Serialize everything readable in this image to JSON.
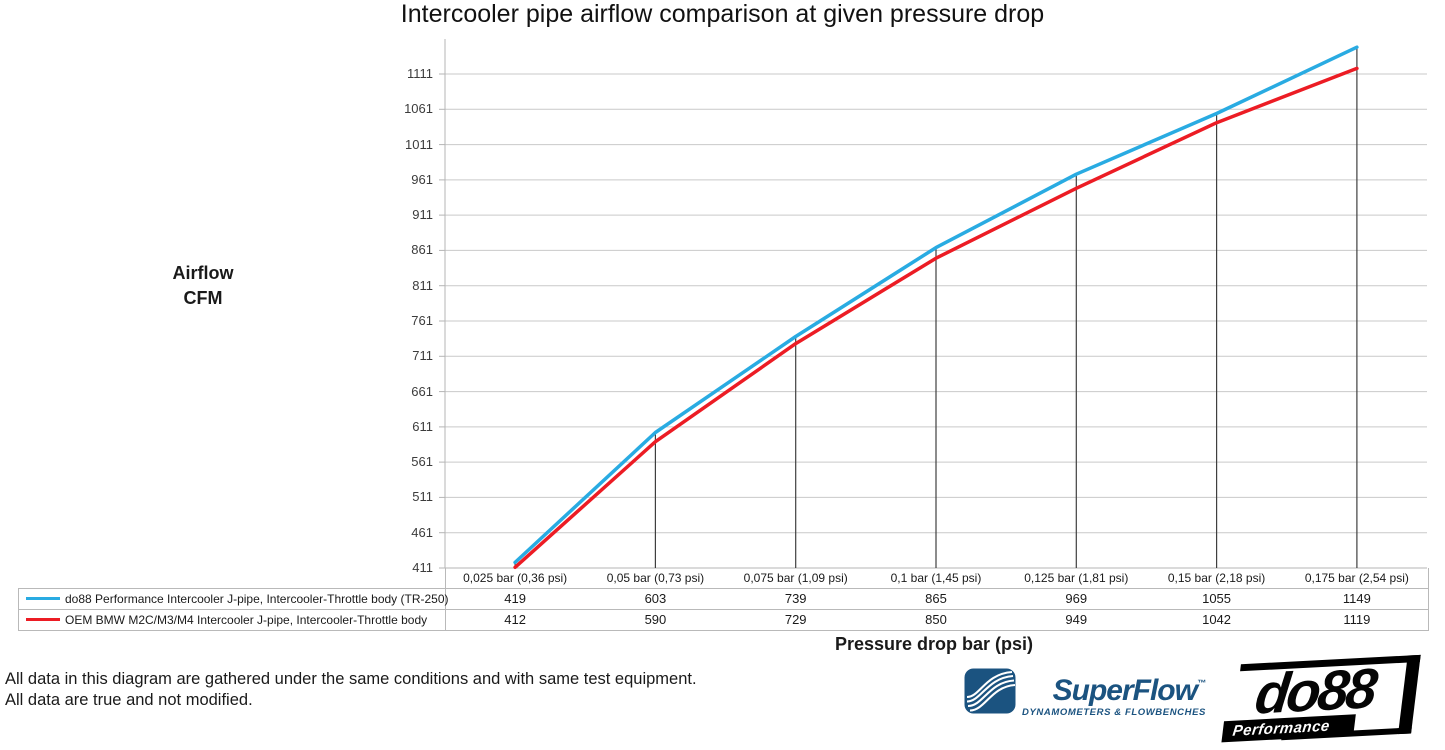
{
  "title": "Intercooler pipe airflow comparison at given pressure drop",
  "chart_data": {
    "type": "line",
    "title": "Intercooler pipe airflow comparison at given pressure drop",
    "ylabel": "Airflow\nCFM",
    "xlabel": "Pressure drop bar (psi)",
    "categories": [
      "0,025 bar (0,36 psi)",
      "0,05 bar (0,73 psi)",
      "0,075 bar (1,09 psi)",
      "0,1 bar (1,45 psi)",
      "0,125 bar (1,81 psi)",
      "0,15 bar (2,18 psi)",
      "0,175 bar (2,54 psi)"
    ],
    "series": [
      {
        "name": "do88 Performance Intercooler J-pipe, Intercooler-Throttle body (TR-250)",
        "color": "#29abe2",
        "values": [
          419,
          603,
          739,
          865,
          969,
          1055,
          1149
        ]
      },
      {
        "name": "OEM BMW M2C/M3/M4 Intercooler J-pipe, Intercooler-Throttle body",
        "color": "#ec1c24",
        "values": [
          412,
          590,
          729,
          850,
          949,
          1042,
          1119
        ]
      }
    ],
    "y_ticks": [
      411,
      461,
      511,
      561,
      611,
      661,
      711,
      761,
      811,
      861,
      911,
      961,
      1011,
      1061,
      1111
    ],
    "ylim": [
      411,
      1161
    ],
    "grid": "horizontal",
    "legend_position": "table-left",
    "drop_lines": true
  },
  "footer": {
    "disclaimer": "All data in this diagram are gathered under the same conditions and with same test equipment.\nAll data are true and not modified."
  },
  "logos": {
    "superflow": {
      "wordmark": "SuperFlow",
      "trademark": "™",
      "tagline": "DYNAMOMETERS & FLOWBENCHES",
      "brand_color": "#1b5380"
    },
    "do88": {
      "wordmark": "do88",
      "tagline": "Performance",
      "brand_color": "#000000"
    }
  }
}
